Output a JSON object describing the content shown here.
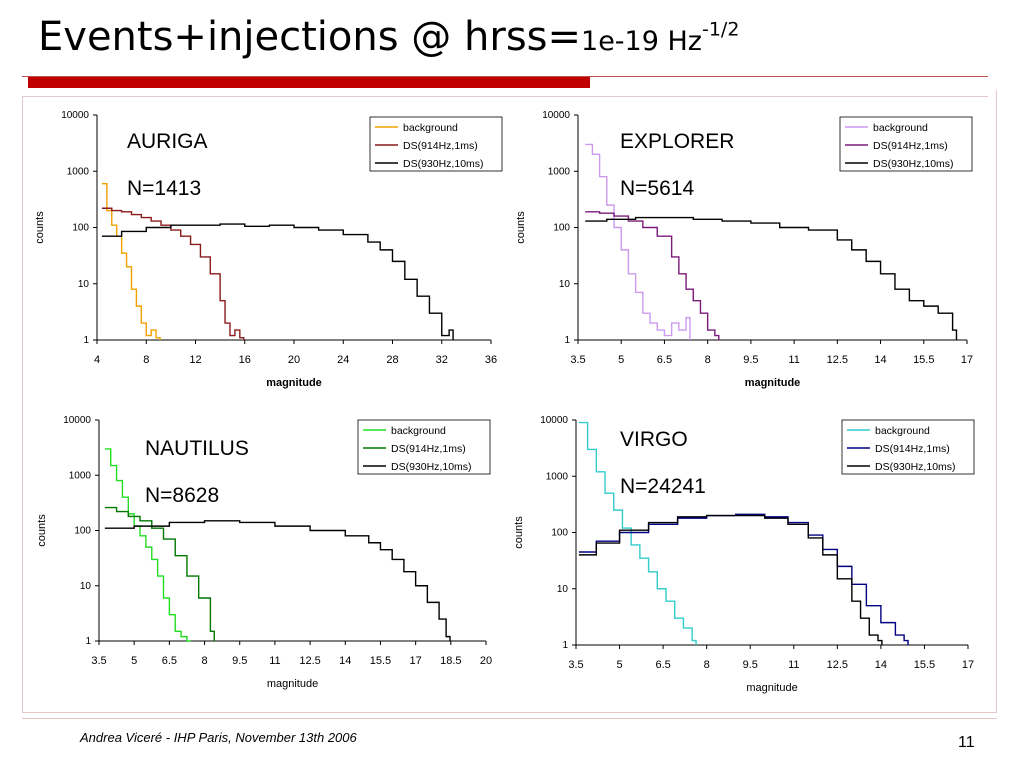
{
  "title": {
    "main": "Events+injections @ hrss=",
    "value": "1e-19 Hz",
    "exponent": "-1/2"
  },
  "footer": {
    "author": "Andrea Viceré - IHP Paris, November 13th 2006",
    "page": "11"
  },
  "colors": {
    "accent_red": "#c00000"
  },
  "chart_data": [
    {
      "type": "line",
      "detector": "AURIGA",
      "count_label": "N=1413",
      "xlabel": "magnitude",
      "ylabel": "counts",
      "xlim": [
        4,
        36
      ],
      "xticks": [
        "4",
        "8",
        "12",
        "16",
        "20",
        "24",
        "28",
        "32",
        "36"
      ],
      "ylim": [
        1,
        10000
      ],
      "yscale": "log",
      "yticks": [
        "10000",
        "1000",
        "100",
        "10",
        "1"
      ],
      "legend": "top-right",
      "series": [
        {
          "name": "background",
          "color": "#f0a000",
          "x": [
            4.4,
            4.8,
            5.2,
            5.6,
            6.0,
            6.4,
            6.8,
            7.2,
            7.6,
            8.0,
            8.4,
            8.8
          ],
          "y": [
            600,
            200,
            110,
            70,
            35,
            20,
            8,
            4,
            2,
            1.2,
            1.5,
            1.1
          ]
        },
        {
          "name": "DS(914Hz,1ms)",
          "color": "#8b1a1a",
          "x": [
            4.4,
            5.2,
            6.0,
            6.8,
            7.6,
            8.4,
            9.2,
            10.0,
            10.8,
            11.6,
            12.4,
            13.2,
            14.0,
            14.4,
            14.8,
            15.2,
            15.6
          ],
          "y": [
            220,
            200,
            190,
            170,
            150,
            130,
            110,
            90,
            70,
            50,
            30,
            15,
            5,
            2,
            1.2,
            1.5,
            1.1
          ]
        },
        {
          "name": "DS(930Hz,10ms)",
          "color": "#000000",
          "x": [
            4.4,
            6,
            8,
            10,
            12,
            14,
            16,
            18,
            20,
            22,
            24,
            26,
            27,
            28,
            29,
            30,
            31,
            32,
            32.6
          ],
          "y": [
            70,
            85,
            100,
            110,
            110,
            115,
            105,
            110,
            100,
            90,
            75,
            55,
            40,
            25,
            12,
            6,
            3,
            1.2,
            1.5
          ]
        }
      ]
    },
    {
      "type": "line",
      "detector": "EXPLORER",
      "count_label": "N=5614",
      "xlabel": "magnitude",
      "ylabel": "counts",
      "xlim": [
        3.5,
        17
      ],
      "xticks": [
        "3.5",
        "5",
        "6.5",
        "8",
        "9.5",
        "11",
        "12.5",
        "14",
        "15.5",
        "17"
      ],
      "ylim": [
        1,
        10000
      ],
      "yscale": "log",
      "yticks": [
        "10000",
        "1000",
        "100",
        "10",
        "1"
      ],
      "legend": "top-right",
      "series": [
        {
          "name": "background",
          "color": "#cc99ee",
          "x": [
            3.75,
            4.0,
            4.25,
            4.5,
            4.75,
            5.0,
            5.25,
            5.5,
            5.75,
            6.0,
            6.25,
            6.5,
            6.75,
            7.0,
            7.25
          ],
          "y": [
            3000,
            2000,
            800,
            250,
            100,
            40,
            15,
            7,
            3,
            2,
            1.5,
            1.2,
            2,
            1.5,
            2.5
          ]
        },
        {
          "name": "DS(914Hz,1ms)",
          "color": "#7a1a7a",
          "x": [
            3.75,
            4.25,
            4.75,
            5.25,
            5.75,
            6.25,
            6.75,
            7.0,
            7.25,
            7.5,
            7.75,
            8.0,
            8.25
          ],
          "y": [
            190,
            180,
            160,
            130,
            100,
            70,
            30,
            15,
            8,
            5,
            3,
            1.5,
            1.2
          ]
        },
        {
          "name": "DS(930Hz,10ms)",
          "color": "#000000",
          "x": [
            3.75,
            4.5,
            5.5,
            6.5,
            7.5,
            8.5,
            9.5,
            10.5,
            11.5,
            12.5,
            13.0,
            13.5,
            14.0,
            14.5,
            15.0,
            15.5,
            16.0,
            16.5
          ],
          "y": [
            130,
            140,
            150,
            150,
            140,
            130,
            120,
            100,
            90,
            60,
            40,
            25,
            15,
            8,
            5,
            4,
            3,
            1.5
          ]
        }
      ]
    },
    {
      "type": "line",
      "detector": "NAUTILUS",
      "count_label": "N=8628",
      "xlabel": "magnitude",
      "ylabel": "counts",
      "xlim": [
        3.5,
        20
      ],
      "xticks": [
        "3.5",
        "5",
        "6.5",
        "8",
        "9.5",
        "11",
        "12.5",
        "14",
        "15.5",
        "17",
        "18.5",
        "20"
      ],
      "ylim": [
        1,
        10000
      ],
      "yscale": "log",
      "yticks": [
        "10000",
        "1000",
        "100",
        "10",
        "1"
      ],
      "legend": "top-right",
      "series": [
        {
          "name": "background",
          "color": "#22dd22",
          "x": [
            3.75,
            4.0,
            4.25,
            4.5,
            4.75,
            5.0,
            5.25,
            5.5,
            5.75,
            6.0,
            6.25,
            6.5,
            6.75,
            7.0,
            7.25
          ],
          "y": [
            3000,
            1500,
            800,
            400,
            200,
            120,
            80,
            50,
            30,
            15,
            6,
            3,
            1.5,
            1.2,
            1.0
          ]
        },
        {
          "name": "DS(914Hz,1ms)",
          "color": "#007700",
          "x": [
            3.75,
            4.25,
            4.75,
            5.25,
            5.75,
            6.25,
            6.75,
            7.25,
            7.75,
            8.25
          ],
          "y": [
            260,
            220,
            180,
            150,
            110,
            70,
            35,
            15,
            6,
            1.5
          ]
        },
        {
          "name": "DS(930Hz,10ms)",
          "color": "#000000",
          "x": [
            3.75,
            5,
            6.5,
            8,
            9.5,
            11,
            12.5,
            14,
            15,
            15.5,
            16,
            16.5,
            17,
            17.5,
            18,
            18.3
          ],
          "y": [
            110,
            120,
            140,
            150,
            140,
            120,
            100,
            80,
            60,
            45,
            30,
            18,
            10,
            5,
            2.5,
            1.2
          ]
        }
      ]
    },
    {
      "type": "line",
      "detector": "VIRGO",
      "count_label": "N=24241",
      "xlabel": "magnitude",
      "ylabel": "counts",
      "xlim": [
        3.5,
        17
      ],
      "xticks": [
        "3.5",
        "5",
        "6.5",
        "8",
        "9.5",
        "11",
        "12.5",
        "14",
        "15.5",
        "17"
      ],
      "ylim": [
        1,
        10000
      ],
      "yscale": "log",
      "yticks": [
        "10000",
        "1000",
        "100",
        "10",
        "1"
      ],
      "legend": "top-right",
      "series": [
        {
          "name": "background",
          "color": "#33cccc",
          "x": [
            3.6,
            3.9,
            4.2,
            4.5,
            4.8,
            5.1,
            5.4,
            5.7,
            6.0,
            6.3,
            6.6,
            6.9,
            7.2,
            7.5
          ],
          "y": [
            9000,
            3000,
            1200,
            500,
            250,
            120,
            60,
            35,
            20,
            10,
            6,
            3,
            2,
            1.2
          ]
        },
        {
          "name": "DS(914Hz,1ms)",
          "color": "#000080",
          "x": [
            3.6,
            4.2,
            5.0,
            6.0,
            7.0,
            8.0,
            9.0,
            10.0,
            10.8,
            11.5,
            12.0,
            12.5,
            13.0,
            13.5,
            14.0,
            14.5,
            14.8
          ],
          "y": [
            45,
            70,
            100,
            140,
            180,
            200,
            210,
            190,
            150,
            90,
            50,
            25,
            12,
            5,
            2.5,
            1.5,
            1.2
          ]
        },
        {
          "name": "DS(930Hz,10ms)",
          "color": "#000000",
          "x": [
            3.6,
            4.2,
            5.0,
            6.0,
            7.0,
            8.0,
            9.0,
            10.0,
            10.8,
            11.5,
            12.0,
            12.5,
            13.0,
            13.3,
            13.6,
            13.9
          ],
          "y": [
            40,
            65,
            110,
            150,
            190,
            200,
            200,
            180,
            140,
            80,
            40,
            15,
            6,
            3,
            1.5,
            1.2
          ]
        }
      ]
    }
  ]
}
